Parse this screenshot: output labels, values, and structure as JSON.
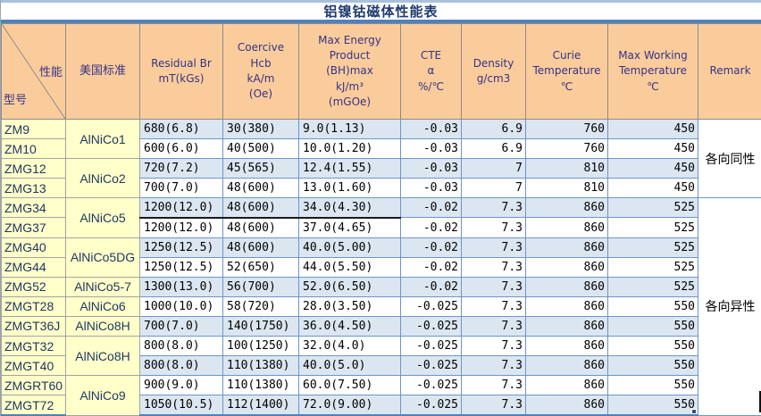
{
  "title": "铝镍钴磁体性能表",
  "colors": {
    "header_bg": "#FBCC9B",
    "model_col_bg": "#FFFFC9",
    "row_blue": "#DCE6F1",
    "row_white": "#FFFFFF",
    "grid_blue": "#6A96C8",
    "accent_blue": "#4F81BD",
    "header_text": "#333388",
    "title_text": "#1F3B6E"
  },
  "header": {
    "diagonal": {
      "top_right": "性能",
      "bottom_left": "型号"
    },
    "columns": [
      "美国标准",
      "Residual Br\nmT(kGs)",
      "Coercive\nHcb\nkA/m\n(Oe)",
      "Max Energy\nProduct\n(BH)max\nkJ/m³\n(mGOe)",
      "CTE\nα\n%/℃",
      "Density\ng/cm3",
      "Curie\nTemperature\n℃",
      "Max Working\nTemperature\n℃",
      "Remark"
    ]
  },
  "rows": [
    {
      "model": "ZM9",
      "standard": "AlNiCo1",
      "standard_rowspan": 2,
      "br": "680(6.8)",
      "hcb": "30(380)",
      "bhmax": "9.0(1.13)",
      "cte": "-0.03",
      "density": "6.9",
      "curie": "760",
      "max_working": "450",
      "remark": "各向同性",
      "remark_rowspan": 4,
      "shade": "blue"
    },
    {
      "model": "ZM10",
      "br": "600(6.0)",
      "hcb": "40(500)",
      "bhmax": "10.0(1.20)",
      "cte": "-0.03",
      "density": "6.9",
      "curie": "760",
      "max_working": "450",
      "shade": "white"
    },
    {
      "model": "ZMG12",
      "standard": "AlNiCo2",
      "standard_rowspan": 2,
      "br": "720(7.2)",
      "hcb": "45(565)",
      "bhmax": "12.4(1.55)",
      "cte": "-0.03",
      "density": "7",
      "curie": "810",
      "max_working": "450",
      "shade": "blue"
    },
    {
      "model": "ZMG13",
      "br": "700(7.0)",
      "hcb": "48(600)",
      "bhmax": "13.0(1.60)",
      "cte": "-0.03",
      "density": "7",
      "curie": "810",
      "max_working": "450",
      "shade": "white"
    },
    {
      "model": "ZMG34",
      "standard": "AlNiCo5",
      "standard_rowspan": 2,
      "br": "1200(12.0)",
      "hcb": "48(600)",
      "bhmax": "34.0(4.30)",
      "cte": "-0.02",
      "density": "7.3",
      "curie": "860",
      "max_working": "525",
      "remark": "各向异性",
      "remark_rowspan": 11,
      "shade": "blue",
      "black_bottom": true
    },
    {
      "model": "ZMG37",
      "br": "1200(12.0)",
      "hcb": "48(600)",
      "bhmax": "37.0(4.65)",
      "cte": "-0.02",
      "density": "7.3",
      "curie": "860",
      "max_working": "525",
      "shade": "white"
    },
    {
      "model": "ZMG40",
      "standard": "AlNiCo5DG",
      "standard_rowspan": 2,
      "br": "1250(12.5)",
      "hcb": "48(600)",
      "bhmax": "40.0(5.00)",
      "cte": "-0.02",
      "density": "7.3",
      "curie": "860",
      "max_working": "525",
      "shade": "blue"
    },
    {
      "model": "ZMG44",
      "br": "1250(12.5)",
      "hcb": "52(650)",
      "bhmax": "44.0(5.50)",
      "cte": "-0.02",
      "density": "7.3",
      "curie": "860",
      "max_working": "525",
      "shade": "white"
    },
    {
      "model": "ZMG52",
      "standard": "AlNiCo5-7",
      "standard_rowspan": 1,
      "br": "1300(13.0)",
      "hcb": "56(700)",
      "bhmax": "52.0(6.50)",
      "cte": "-0.02",
      "density": "7.3",
      "curie": "860",
      "max_working": "525",
      "shade": "blue"
    },
    {
      "model": "ZMGT28",
      "standard": "AlNiCo6",
      "standard_rowspan": 1,
      "br": "1000(10.0)",
      "hcb": "58(720)",
      "bhmax": "28.0(3.50)",
      "cte": "-0.025",
      "density": "7.3",
      "curie": "860",
      "max_working": "550",
      "shade": "white"
    },
    {
      "model": "ZMGT36J",
      "standard": "AlNiCo8H",
      "standard_rowspan": 1,
      "br": "700(7.0)",
      "hcb": "140(1750)",
      "bhmax": "36.0(4.50)",
      "cte": "-0.025",
      "density": "7.3",
      "curie": "860",
      "max_working": "550",
      "shade": "blue"
    },
    {
      "model": "ZMGT32",
      "standard": "AlNiCo8H",
      "standard_rowspan": 2,
      "br": "800(8.0)",
      "hcb": "100(1250)",
      "bhmax": "32.0(4.0)",
      "cte": "-0.025",
      "density": "7.3",
      "curie": "860",
      "max_working": "550",
      "shade": "white"
    },
    {
      "model": "ZMGT40",
      "br": "800(8.0)",
      "hcb": "110(1380)",
      "bhmax": "40.0(5.0)",
      "cte": "-0.025",
      "density": "7.3",
      "curie": "860",
      "max_working": "550",
      "shade": "blue"
    },
    {
      "model": "ZMGRT60",
      "standard": "AlNiCo9",
      "standard_rowspan": 2,
      "br": "900(9.0)",
      "hcb": "110(1380)",
      "bhmax": "60.0(7.50)",
      "cte": "-0.025",
      "density": "7.3",
      "curie": "860",
      "max_working": "550",
      "shade": "white"
    },
    {
      "model": "ZMGT72",
      "br": "1050(10.5)",
      "hcb": "112(1400)",
      "bhmax": "72.0(9.00)",
      "cte": "-0.025",
      "density": "7.3",
      "curie": "860",
      "max_working": "550",
      "shade": "blue"
    }
  ]
}
